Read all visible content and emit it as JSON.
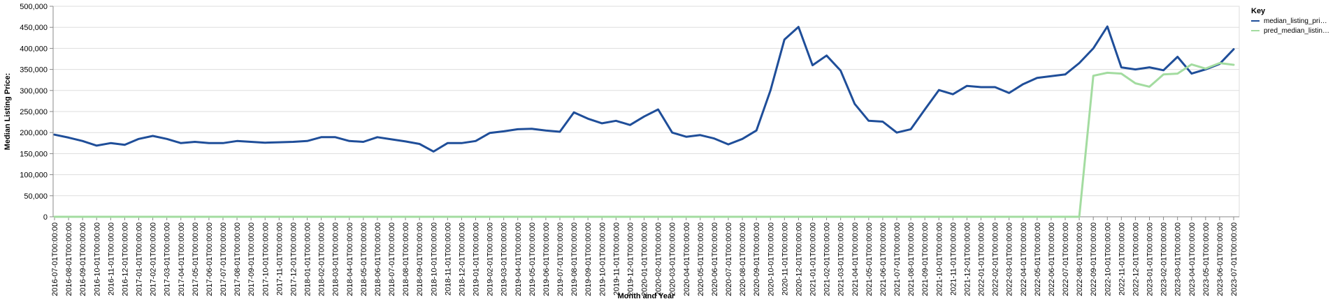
{
  "chart_data": {
    "type": "line",
    "xlabel": "Month and Year",
    "ylabel": "Median Listing Price:",
    "ylim": [
      0,
      500000
    ],
    "y_ticks": [
      "0",
      "50,000",
      "100,000",
      "150,000",
      "200,000",
      "250,000",
      "300,000",
      "350,000",
      "400,000",
      "450,000",
      "500,000"
    ],
    "grid": true,
    "legend": {
      "title": "Key",
      "placement": "top-right",
      "labels": [
        "median_listing_pri…",
        "pred_median_listin…"
      ]
    },
    "x": [
      "2016-07-01T00:00:00",
      "2016-08-01T00:00:00",
      "2016-09-01T00:00:00",
      "2016-10-01T00:00:00",
      "2016-11-01T00:00:00",
      "2016-12-01T00:00:00",
      "2017-01-01T00:00:00",
      "2017-02-01T00:00:00",
      "2017-03-01T00:00:00",
      "2017-04-01T00:00:00",
      "2017-05-01T00:00:00",
      "2017-06-01T00:00:00",
      "2017-07-01T00:00:00",
      "2017-08-01T00:00:00",
      "2017-09-01T00:00:00",
      "2017-10-01T00:00:00",
      "2017-11-01T00:00:00",
      "2017-12-01T00:00:00",
      "2018-01-01T00:00:00",
      "2018-02-01T00:00:00",
      "2018-03-01T00:00:00",
      "2018-04-01T00:00:00",
      "2018-05-01T00:00:00",
      "2018-06-01T00:00:00",
      "2018-07-01T00:00:00",
      "2018-08-01T00:00:00",
      "2018-09-01T00:00:00",
      "2018-10-01T00:00:00",
      "2018-11-01T00:00:00",
      "2018-12-01T00:00:00",
      "2019-01-01T00:00:00",
      "2019-02-01T00:00:00",
      "2019-03-01T00:00:00",
      "2019-04-01T00:00:00",
      "2019-05-01T00:00:00",
      "2019-06-01T00:00:00",
      "2019-07-01T00:00:00",
      "2019-08-01T00:00:00",
      "2019-09-01T00:00:00",
      "2019-10-01T00:00:00",
      "2019-11-01T00:00:00",
      "2019-12-01T00:00:00",
      "2020-01-01T00:00:00",
      "2020-02-01T00:00:00",
      "2020-03-01T00:00:00",
      "2020-04-01T00:00:00",
      "2020-05-01T00:00:00",
      "2020-06-01T00:00:00",
      "2020-07-01T00:00:00",
      "2020-08-01T00:00:00",
      "2020-09-01T00:00:00",
      "2020-10-01T00:00:00",
      "2020-11-01T00:00:00",
      "2020-12-01T00:00:00",
      "2021-01-01T00:00:00",
      "2021-02-01T00:00:00",
      "2021-03-01T00:00:00",
      "2021-04-01T00:00:00",
      "2021-05-01T00:00:00",
      "2021-06-01T00:00:00",
      "2021-07-01T00:00:00",
      "2021-08-01T00:00:00",
      "2021-09-01T00:00:00",
      "2021-10-01T00:00:00",
      "2021-11-01T00:00:00",
      "2021-12-01T00:00:00",
      "2022-01-01T00:00:00",
      "2022-02-01T00:00:00",
      "2022-03-01T00:00:00",
      "2022-04-01T00:00:00",
      "2022-05-01T00:00:00",
      "2022-06-01T00:00:00",
      "2022-07-01T00:00:00",
      "2022-08-01T00:00:00",
      "2022-09-01T00:00:00",
      "2022-10-01T00:00:00",
      "2022-11-01T00:00:00",
      "2022-12-01T00:00:00",
      "2023-01-01T00:00:00",
      "2023-02-01T00:00:00",
      "2023-03-01T00:00:00",
      "2023-04-01T00:00:00",
      "2023-05-01T00:00:00",
      "2023-06-01T00:00:00",
      "2023-07-01T00:00:00"
    ],
    "series": [
      {
        "name": "median_listing_pri…",
        "color": "#1f4e99",
        "values": [
          195000,
          188000,
          180000,
          169000,
          175000,
          171000,
          185000,
          192000,
          185000,
          175000,
          178000,
          175000,
          175000,
          180000,
          178000,
          176000,
          177000,
          178000,
          180000,
          189000,
          189000,
          180000,
          178000,
          189000,
          184000,
          179000,
          173000,
          155000,
          175000,
          175000,
          180000,
          199000,
          203000,
          208000,
          209000,
          205000,
          202000,
          248000,
          233000,
          222000,
          228000,
          218000,
          238000,
          255000,
          200000,
          190000,
          194000,
          186000,
          172000,
          185000,
          205000,
          300000,
          421000,
          451000,
          360000,
          383000,
          347000,
          268000,
          228000,
          226000,
          200000,
          208000,
          255000,
          301000,
          291000,
          311000,
          308000,
          308000,
          294000,
          315000,
          330000,
          334000,
          338000,
          365000,
          400000,
          452000,
          355000,
          350000,
          355000,
          348000,
          380000,
          340000,
          350000,
          363000,
          398000
        ]
      },
      {
        "name": "pred_median_listin…",
        "color": "#a3dca0",
        "values": [
          0,
          0,
          0,
          0,
          0,
          0,
          0,
          0,
          0,
          0,
          0,
          0,
          0,
          0,
          0,
          0,
          0,
          0,
          0,
          0,
          0,
          0,
          0,
          0,
          0,
          0,
          0,
          0,
          0,
          0,
          0,
          0,
          0,
          0,
          0,
          0,
          0,
          0,
          0,
          0,
          0,
          0,
          0,
          0,
          0,
          0,
          0,
          0,
          0,
          0,
          0,
          0,
          0,
          0,
          0,
          0,
          0,
          0,
          0,
          0,
          0,
          0,
          0,
          0,
          0,
          0,
          0,
          0,
          0,
          0,
          0,
          0,
          0,
          0,
          335000,
          342000,
          340000,
          317000,
          309000,
          338000,
          340000,
          362000,
          352000,
          365000,
          361000
        ]
      }
    ]
  }
}
